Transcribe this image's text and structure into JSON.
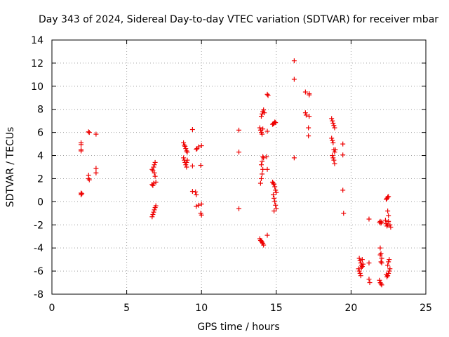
{
  "chart_data": {
    "type": "scatter",
    "title": "Day 343 of 2024, Sidereal Day-to-day VTEC variation (SDTVAR) for receiver mbar",
    "xlabel": "GPS time / hours",
    "ylabel": "SDTVAR / TECUs",
    "xlim": [
      0,
      25
    ],
    "ylim": [
      -8,
      14
    ],
    "xticks": [
      "0",
      "5",
      "10",
      "15",
      "20",
      "25"
    ],
    "yticks": [
      "-8",
      "-6",
      "-4",
      "-2",
      "0",
      "2",
      "4",
      "6",
      "8",
      "10",
      "12",
      "14"
    ],
    "grid": true,
    "marker": "+",
    "color": "#ee0000",
    "series": [
      {
        "points": [
          [
            1.95,
            5.1
          ],
          [
            1.95,
            4.95
          ],
          [
            1.95,
            4.5
          ],
          [
            1.95,
            4.4
          ],
          [
            1.95,
            0.75
          ],
          [
            1.95,
            0.6
          ],
          [
            2.0,
            0.7
          ],
          [
            2.45,
            6.05
          ],
          [
            2.5,
            6.0
          ],
          [
            2.45,
            2.3
          ],
          [
            2.45,
            2.0
          ],
          [
            2.5,
            1.9
          ],
          [
            2.95,
            5.85
          ],
          [
            2.95,
            2.9
          ],
          [
            2.95,
            2.5
          ],
          [
            6.7,
            2.8
          ],
          [
            6.75,
            2.7
          ],
          [
            6.7,
            1.5
          ],
          [
            6.8,
            1.6
          ],
          [
            6.75,
            1.4
          ],
          [
            6.8,
            3.0
          ],
          [
            6.85,
            3.2
          ],
          [
            6.9,
            3.4
          ],
          [
            6.85,
            2.5
          ],
          [
            6.9,
            2.2
          ],
          [
            6.95,
            1.7
          ],
          [
            6.7,
            -1.3
          ],
          [
            6.75,
            -1.1
          ],
          [
            6.8,
            -0.9
          ],
          [
            6.85,
            -0.7
          ],
          [
            6.9,
            -0.5
          ],
          [
            6.95,
            -0.35
          ],
          [
            8.8,
            5.1
          ],
          [
            8.85,
            4.9
          ],
          [
            8.9,
            4.8
          ],
          [
            8.95,
            4.6
          ],
          [
            9.0,
            4.4
          ],
          [
            9.05,
            4.3
          ],
          [
            8.8,
            3.8
          ],
          [
            8.85,
            3.6
          ],
          [
            8.9,
            3.4
          ],
          [
            8.95,
            3.2
          ],
          [
            9.0,
            3.4
          ],
          [
            9.05,
            3.6
          ],
          [
            9.0,
            3.0
          ],
          [
            9.4,
            6.25
          ],
          [
            9.4,
            3.1
          ],
          [
            9.65,
            4.55
          ],
          [
            9.7,
            4.6
          ],
          [
            9.8,
            4.75
          ],
          [
            10.0,
            4.85
          ],
          [
            9.4,
            0.9
          ],
          [
            9.6,
            0.85
          ],
          [
            9.65,
            0.6
          ],
          [
            9.95,
            3.15
          ],
          [
            9.65,
            -0.4
          ],
          [
            9.8,
            -0.3
          ],
          [
            10.0,
            -0.2
          ],
          [
            9.95,
            -1.0
          ],
          [
            10.0,
            -1.15
          ],
          [
            12.5,
            6.2
          ],
          [
            12.5,
            4.3
          ],
          [
            12.5,
            -0.6
          ],
          [
            13.9,
            6.4
          ],
          [
            13.95,
            6.2
          ],
          [
            14.0,
            6.0
          ],
          [
            14.05,
            5.85
          ],
          [
            14.1,
            6.3
          ],
          [
            14.0,
            7.4
          ],
          [
            14.05,
            7.6
          ],
          [
            14.1,
            7.8
          ],
          [
            14.15,
            7.95
          ],
          [
            14.2,
            7.7
          ],
          [
            14.0,
            3.2
          ],
          [
            14.05,
            3.5
          ],
          [
            14.1,
            3.9
          ],
          [
            14.15,
            3.8
          ],
          [
            13.95,
            1.6
          ],
          [
            14.0,
            2.0
          ],
          [
            14.05,
            2.4
          ],
          [
            14.1,
            2.8
          ],
          [
            13.9,
            -3.2
          ],
          [
            13.95,
            -3.35
          ],
          [
            14.0,
            -3.4
          ],
          [
            14.05,
            -3.5
          ],
          [
            14.1,
            -3.6
          ],
          [
            14.15,
            -3.75
          ],
          [
            14.35,
            3.9
          ],
          [
            14.4,
            2.8
          ],
          [
            14.4,
            9.3
          ],
          [
            14.45,
            9.2
          ],
          [
            14.4,
            6.1
          ],
          [
            14.4,
            -2.9
          ],
          [
            14.75,
            6.7
          ],
          [
            14.8,
            6.75
          ],
          [
            14.85,
            6.8
          ],
          [
            14.9,
            6.9
          ],
          [
            14.95,
            6.85
          ],
          [
            14.75,
            1.7
          ],
          [
            14.8,
            1.6
          ],
          [
            14.85,
            1.5
          ],
          [
            14.9,
            1.3
          ],
          [
            14.95,
            1.0
          ],
          [
            15.0,
            0.8
          ],
          [
            14.8,
            0.6
          ],
          [
            14.85,
            0.3
          ],
          [
            14.9,
            0.0
          ],
          [
            14.95,
            -0.3
          ],
          [
            15.0,
            -0.6
          ],
          [
            14.85,
            -0.8
          ],
          [
            16.2,
            12.2
          ],
          [
            16.2,
            10.6
          ],
          [
            16.2,
            3.8
          ],
          [
            16.95,
            9.5
          ],
          [
            17.2,
            9.35
          ],
          [
            17.2,
            9.25
          ],
          [
            16.95,
            7.7
          ],
          [
            17.0,
            7.5
          ],
          [
            17.2,
            7.4
          ],
          [
            17.15,
            6.4
          ],
          [
            17.15,
            5.7
          ],
          [
            18.7,
            7.2
          ],
          [
            18.75,
            7.0
          ],
          [
            18.8,
            6.8
          ],
          [
            18.85,
            6.6
          ],
          [
            18.9,
            6.4
          ],
          [
            18.7,
            5.5
          ],
          [
            18.75,
            5.3
          ],
          [
            18.8,
            5.1
          ],
          [
            18.85,
            4.5
          ],
          [
            18.9,
            4.3
          ],
          [
            18.75,
            4.0
          ],
          [
            18.8,
            3.8
          ],
          [
            18.85,
            3.6
          ],
          [
            18.9,
            3.3
          ],
          [
            18.95,
            4.5
          ],
          [
            19.45,
            5.0
          ],
          [
            19.45,
            4.05
          ],
          [
            19.45,
            1.0
          ],
          [
            19.5,
            -1.0
          ],
          [
            20.55,
            -4.9
          ],
          [
            20.6,
            -5.1
          ],
          [
            20.65,
            -5.3
          ],
          [
            20.7,
            -5.5
          ],
          [
            20.75,
            -5.6
          ],
          [
            20.8,
            -5.4
          ],
          [
            20.5,
            -5.8
          ],
          [
            20.55,
            -6.0
          ],
          [
            20.6,
            -6.2
          ],
          [
            20.65,
            -6.4
          ],
          [
            20.7,
            -5.7
          ],
          [
            20.75,
            -5.0
          ],
          [
            21.2,
            -1.5
          ],
          [
            21.2,
            -5.3
          ],
          [
            21.2,
            -6.7
          ],
          [
            21.25,
            -7.0
          ],
          [
            21.9,
            -1.8
          ],
          [
            21.95,
            -1.7
          ],
          [
            22.0,
            -1.85
          ],
          [
            22.05,
            -1.75
          ],
          [
            21.95,
            -4.0
          ],
          [
            22.0,
            -4.5
          ],
          [
            22.05,
            -4.9
          ],
          [
            22.0,
            -5.2
          ],
          [
            22.05,
            -5.3
          ],
          [
            21.95,
            -4.6
          ],
          [
            21.9,
            -6.8
          ],
          [
            21.95,
            -7.0
          ],
          [
            22.0,
            -7.1
          ],
          [
            22.05,
            -7.2
          ],
          [
            22.3,
            -1.6
          ],
          [
            22.35,
            -1.9
          ],
          [
            22.4,
            -2.1
          ],
          [
            22.45,
            -2.0
          ],
          [
            22.5,
            -1.7
          ],
          [
            22.45,
            -0.8
          ],
          [
            22.5,
            -1.2
          ],
          [
            22.35,
            0.2
          ],
          [
            22.4,
            0.3
          ],
          [
            22.45,
            0.4
          ],
          [
            22.5,
            0.45
          ],
          [
            22.35,
            -6.3
          ],
          [
            22.4,
            -6.5
          ],
          [
            22.45,
            -6.4
          ],
          [
            22.5,
            -6.2
          ],
          [
            22.55,
            -6.0
          ],
          [
            22.6,
            -5.8
          ],
          [
            22.45,
            -5.5
          ],
          [
            22.5,
            -5.2
          ],
          [
            22.55,
            -5.0
          ],
          [
            22.65,
            -2.2
          ],
          [
            22.6,
            -2.0
          ]
        ]
      }
    ]
  }
}
